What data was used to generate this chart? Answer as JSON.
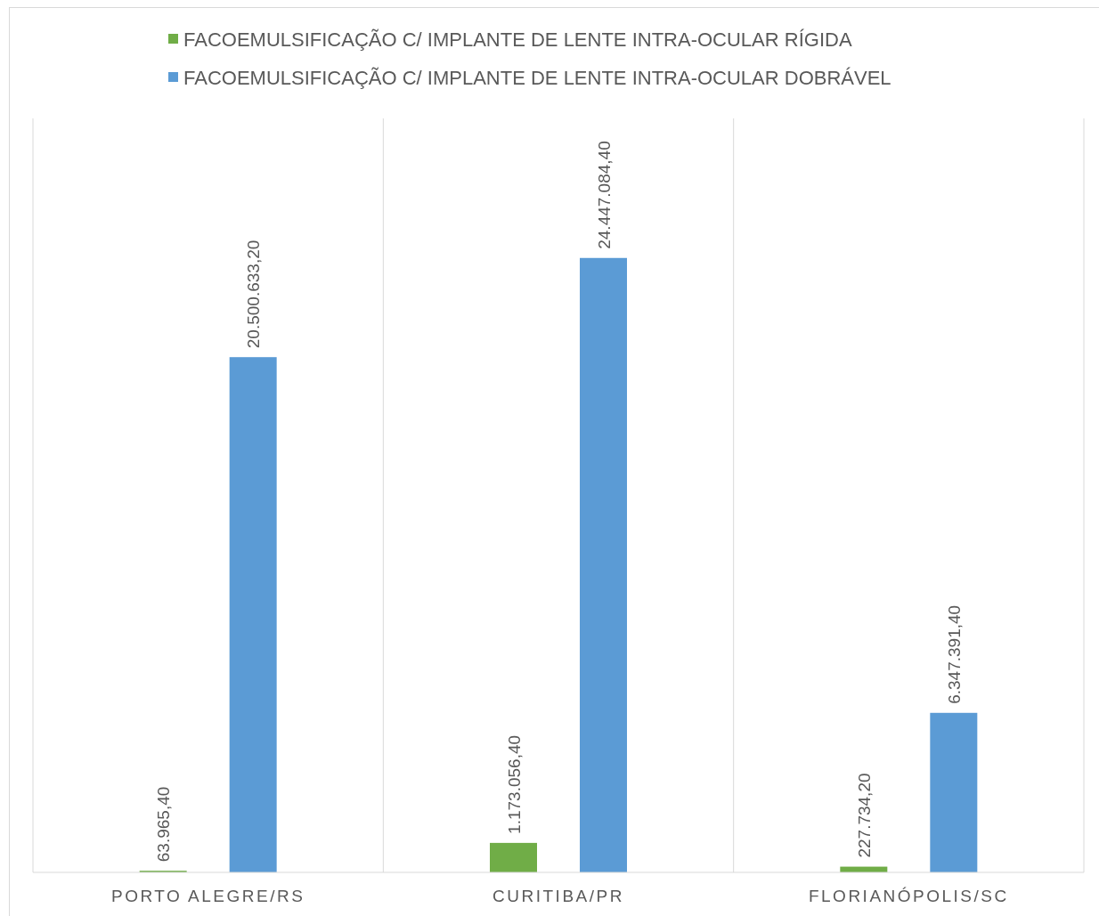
{
  "chart_data": {
    "type": "bar",
    "categories": [
      "PORTO ALEGRE/RS",
      "CURITIBA/PR",
      "FLORIANÓPOLIS/SC"
    ],
    "series": [
      {
        "name": "FACOEMULSIFICAÇÃO C/ IMPLANTE DE LENTE INTRA-OCULAR RÍGIDA",
        "color": "#70ad47",
        "values": [
          63965.4,
          1173056.4,
          227734.2
        ],
        "value_labels": [
          "63.965,40",
          "1.173.056,40",
          "227.734,20"
        ]
      },
      {
        "name": "FACOEMULSIFICAÇÃO C/ IMPLANTE DE LENTE INTRA-OCULAR DOBRÁVEL",
        "color": "#5b9bd5",
        "values": [
          20500633.2,
          24447084.4,
          6347391.4
        ],
        "value_labels": [
          "20.500.633,20",
          "24.447.084,40",
          "6.347.391,40"
        ]
      }
    ],
    "ylim": [
      0,
      30000000
    ],
    "grid": "x",
    "legend": "top"
  }
}
